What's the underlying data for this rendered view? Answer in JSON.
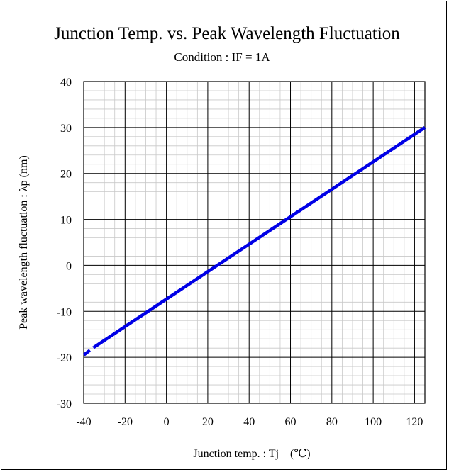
{
  "chart_data": {
    "type": "line",
    "title": "Junction Temp. vs. Peak Wavelength Fluctuation",
    "subtitle": "Condition : IF = 1A",
    "xlabel": "Junction temp. : Tj　(℃)",
    "ylabel": "Peak wavelength fluctuation : λp (nm)",
    "xlim": [
      -40,
      125
    ],
    "ylim": [
      -30,
      40
    ],
    "x_ticks": [
      -40,
      -20,
      0,
      20,
      40,
      60,
      80,
      100,
      120
    ],
    "y_ticks": [
      -30,
      -20,
      -10,
      0,
      10,
      20,
      30,
      40
    ],
    "x_tick_labels": [
      "-40",
      "-20",
      "0",
      "20",
      "40",
      "60",
      "80",
      "100",
      "120"
    ],
    "y_tick_labels": [
      "-30",
      "-20",
      "-10",
      "0",
      "10",
      "20",
      "30",
      "40"
    ],
    "grid": true,
    "series": [
      {
        "color": "#0000e6",
        "segments": [
          {
            "style": "dashed",
            "x": [
              -40,
              -35
            ],
            "y": [
              -19.5,
              -17.8
            ]
          },
          {
            "style": "solid",
            "x": [
              -35,
              125
            ],
            "y": [
              -17.8,
              30
            ]
          }
        ]
      }
    ]
  }
}
